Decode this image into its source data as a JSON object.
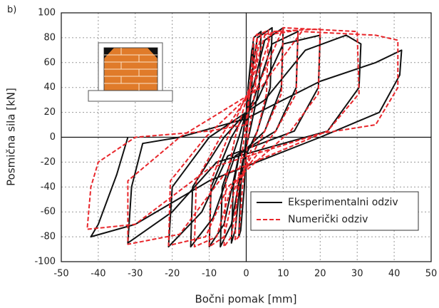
{
  "chart_data": {
    "type": "line",
    "panel_label": "b)",
    "x_label": "Bočni pomak [mm]",
    "y_label": "Posmična sila [kN]",
    "xlim": [
      -50,
      50
    ],
    "xticks": [
      -50,
      -40,
      -30,
      -20,
      -10,
      0,
      10,
      20,
      30,
      40,
      50
    ],
    "ylim": [
      -100,
      100
    ],
    "yticks": [
      -100,
      -80,
      -60,
      -40,
      -20,
      0,
      20,
      40,
      60,
      80,
      100
    ],
    "grid": true,
    "legend_position": "lower right",
    "series": [
      {
        "name": "Eksperimentalni odziv",
        "color": "#111111",
        "dash": false,
        "x": [
          0,
          0.5,
          1.5,
          2,
          1.5,
          0,
          -0.5,
          -1.5,
          -2,
          -1.5,
          0,
          0.5,
          2,
          4,
          3.5,
          1,
          -1,
          -3,
          -4,
          -3.5,
          -1,
          1,
          3,
          7,
          6.5,
          3,
          -1,
          -4,
          -7,
          -6.5,
          -2,
          1,
          5,
          10,
          9.5,
          5,
          -2,
          -6,
          -10,
          -9.5,
          -4,
          2,
          7,
          14,
          13.5,
          8,
          -3,
          -9,
          -15,
          -14.5,
          -6,
          3,
          10,
          20,
          19.5,
          13,
          -5,
          -12,
          -21,
          -20,
          -10,
          5,
          16,
          27,
          31,
          30.5,
          22,
          -8,
          -20,
          -32,
          -31,
          -28,
          -18,
          0,
          20,
          35,
          42,
          41.5,
          36,
          20,
          -10,
          -30,
          -42,
          -40,
          -35,
          -32
        ],
        "y": [
          0,
          40,
          70,
          75,
          40,
          0,
          -40,
          -75,
          -80,
          -40,
          0,
          40,
          80,
          85,
          40,
          5,
          -20,
          -75,
          -85,
          -40,
          0,
          40,
          80,
          88,
          40,
          5,
          -20,
          -70,
          -88,
          -40,
          0,
          30,
          78,
          88,
          40,
          5,
          -15,
          -70,
          -88,
          -40,
          0,
          30,
          75,
          85,
          40,
          5,
          -15,
          -65,
          -88,
          -40,
          0,
          30,
          75,
          82,
          40,
          5,
          -15,
          -60,
          -88,
          -40,
          0,
          30,
          70,
          82,
          75,
          40,
          5,
          -20,
          -60,
          -85,
          -40,
          -5,
          0,
          15,
          45,
          60,
          70,
          50,
          20,
          0,
          -35,
          -70,
          -80,
          -70,
          -30,
          0
        ]
      },
      {
        "name": "Numerički odziv",
        "color": "#e8262b",
        "dash": true,
        "x": [
          0,
          1,
          2,
          3,
          2.5,
          0.5,
          -1,
          -2,
          -3,
          -2.5,
          -0.5,
          1,
          3,
          6,
          5.5,
          3,
          -2,
          -4,
          -6,
          -5.5,
          -3,
          1,
          4,
          10,
          9.5,
          5,
          -3,
          -6,
          -10,
          -9.5,
          -5,
          1,
          5,
          14,
          13.5,
          8,
          -4,
          -8,
          -14,
          -13.5,
          -7,
          2,
          7,
          20,
          19.5,
          12,
          -5,
          -11,
          -21,
          -20.5,
          -11,
          3,
          10,
          30,
          30.5,
          22,
          -6,
          -18,
          -32,
          -32,
          -18,
          4,
          15,
          35,
          41,
          41,
          35,
          20,
          -10,
          -30,
          -43,
          -42,
          -40,
          -30,
          -10,
          0
        ],
        "y": [
          0,
          40,
          80,
          83,
          40,
          0,
          -40,
          -80,
          -83,
          -40,
          0,
          40,
          82,
          86,
          35,
          5,
          -40,
          -80,
          -88,
          -35,
          0,
          40,
          82,
          86,
          35,
          5,
          -40,
          -80,
          -88,
          -35,
          0,
          40,
          82,
          86,
          35,
          5,
          -40,
          -80,
          -88,
          -35,
          0,
          40,
          85,
          87,
          35,
          5,
          -40,
          -80,
          -87,
          -35,
          0,
          40,
          88,
          85,
          35,
          5,
          -30,
          -78,
          -86,
          -35,
          0,
          40,
          85,
          82,
          78,
          40,
          10,
          3,
          -25,
          -70,
          -74,
          -40,
          -20,
          0,
          5,
          10
        ]
      }
    ]
  }
}
